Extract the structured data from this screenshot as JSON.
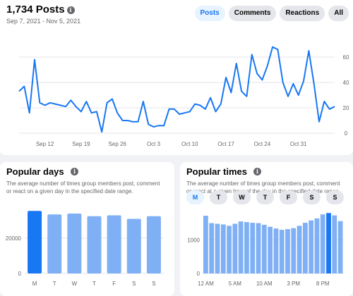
{
  "posts_panel": {
    "title": "1,734 Posts",
    "date_range": "Sep 7, 2021 - Nov 5, 2021",
    "tabs": [
      {
        "label": "Posts",
        "active": true
      },
      {
        "label": "Comments",
        "active": false
      },
      {
        "label": "Reactions",
        "active": false
      },
      {
        "label": "All",
        "active": false
      }
    ]
  },
  "popular_days": {
    "title": "Popular days",
    "description": "The average number of times group members post, comment or react on a given day in the specified date range."
  },
  "popular_times": {
    "title": "Popular times",
    "description": "The average number of times group members post, comment or react at a given hour of the day in the specified date range.",
    "day_buttons": [
      {
        "label": "M",
        "active": true
      },
      {
        "label": "T",
        "active": false
      },
      {
        "label": "W",
        "active": false
      },
      {
        "label": "T",
        "active": false
      },
      {
        "label": "F",
        "active": false
      },
      {
        "label": "S",
        "active": false
      },
      {
        "label": "S",
        "active": false
      }
    ]
  },
  "colors": {
    "line": "#1877f2",
    "bar": "#7fb0f5",
    "bar_highlight": "#1877f2",
    "grid": "#e4e6eb"
  },
  "chart_data": [
    {
      "type": "line",
      "ylim": [
        0,
        70
      ],
      "y_ticks": [
        "0",
        "20",
        "40",
        "60"
      ],
      "x_labels": [
        "Sep 12",
        "Sep 19",
        "Sep 26",
        "Oct 3",
        "Oct 10",
        "Oct 17",
        "Oct 24",
        "Oct 31"
      ],
      "series": [
        {
          "values": [
            33,
            37,
            16,
            58,
            24,
            22,
            24,
            23,
            22,
            21,
            26,
            21,
            17,
            25,
            16,
            17,
            1,
            24,
            27,
            16,
            10,
            10,
            9,
            9,
            25,
            7,
            5,
            6,
            6,
            19,
            19,
            15,
            16,
            17,
            23,
            22,
            19,
            28,
            17,
            23,
            44,
            32,
            55,
            33,
            29,
            62,
            47,
            42,
            53,
            68,
            66,
            40,
            29,
            39,
            30,
            41,
            65,
            39,
            9,
            25,
            19,
            21
          ]
        }
      ]
    },
    {
      "type": "bar",
      "categories": [
        "M",
        "T",
        "W",
        "T",
        "F",
        "S",
        "S"
      ],
      "values": [
        35500,
        33500,
        34000,
        32500,
        33000,
        31000,
        32500
      ],
      "ylim": [
        0,
        40000
      ],
      "y_ticks": [
        "0",
        "20000"
      ],
      "highlight_index": 0
    },
    {
      "type": "bar",
      "values": [
        1720,
        1500,
        1480,
        1460,
        1420,
        1480,
        1550,
        1530,
        1510,
        1500,
        1450,
        1390,
        1340,
        1300,
        1320,
        1350,
        1420,
        1510,
        1580,
        1640,
        1760,
        1800,
        1730,
        1560
      ],
      "x_labels": [
        "12 AM",
        "5 AM",
        "10 AM",
        "3 PM",
        "8 PM"
      ],
      "ylim": [
        0,
        2100
      ],
      "y_ticks": [
        "0",
        "1000"
      ],
      "highlight_index": 21
    }
  ]
}
